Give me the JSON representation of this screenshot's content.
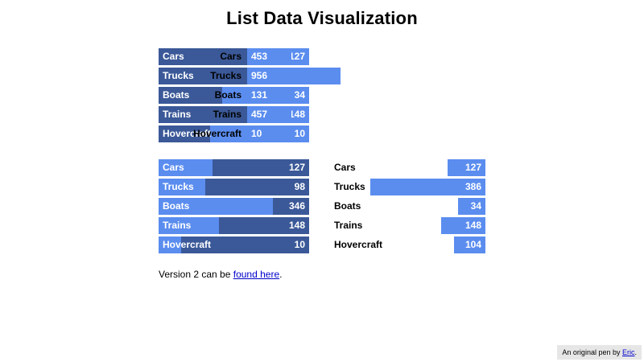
{
  "title": "List Data Visualization",
  "colors": {
    "dark": "#3b5998",
    "light": "#5b8def"
  },
  "charts": [
    {
      "id": "chart-a",
      "items": [
        {
          "label": "Cars",
          "value": "127",
          "fraction": 0.73
        },
        {
          "label": "Trucks",
          "value": "98",
          "fraction": 0.63
        },
        {
          "label": "Boats",
          "value": "34",
          "fraction": 0.42
        },
        {
          "label": "Trains",
          "value": "148",
          "fraction": 0.8
        },
        {
          "label": "Hovercraft",
          "value": "10",
          "fraction": 0.34
        }
      ]
    },
    {
      "id": "chart-b",
      "items": [
        {
          "label": "Cars",
          "value": "453"
        },
        {
          "label": "Trucks",
          "value": "956"
        },
        {
          "label": "Boats",
          "value": "131"
        },
        {
          "label": "Trains",
          "value": "457"
        },
        {
          "label": "Hovercraft",
          "value": "10"
        }
      ]
    },
    {
      "id": "chart-c",
      "items": [
        {
          "label": "Cars",
          "value": "127",
          "fraction": 0.36
        },
        {
          "label": "Trucks",
          "value": "98",
          "fraction": 0.31
        },
        {
          "label": "Boats",
          "value": "346",
          "fraction": 0.76
        },
        {
          "label": "Trains",
          "value": "148",
          "fraction": 0.4
        },
        {
          "label": "Hovercraft",
          "value": "10",
          "fraction": 0.15
        }
      ]
    },
    {
      "id": "chart-d",
      "items": [
        {
          "label": "Cars",
          "value": "127"
        },
        {
          "label": "Trucks",
          "value": "386"
        },
        {
          "label": "Boats",
          "value": "34"
        },
        {
          "label": "Trains",
          "value": "148"
        },
        {
          "label": "Hovercraft",
          "value": "104"
        }
      ]
    }
  ],
  "footnote": {
    "prefix": "Version 2 can be ",
    "link": "found here",
    "suffix": "."
  },
  "credit": {
    "prefix": "An original pen by ",
    "link": "Eric",
    "suffix": "."
  }
}
